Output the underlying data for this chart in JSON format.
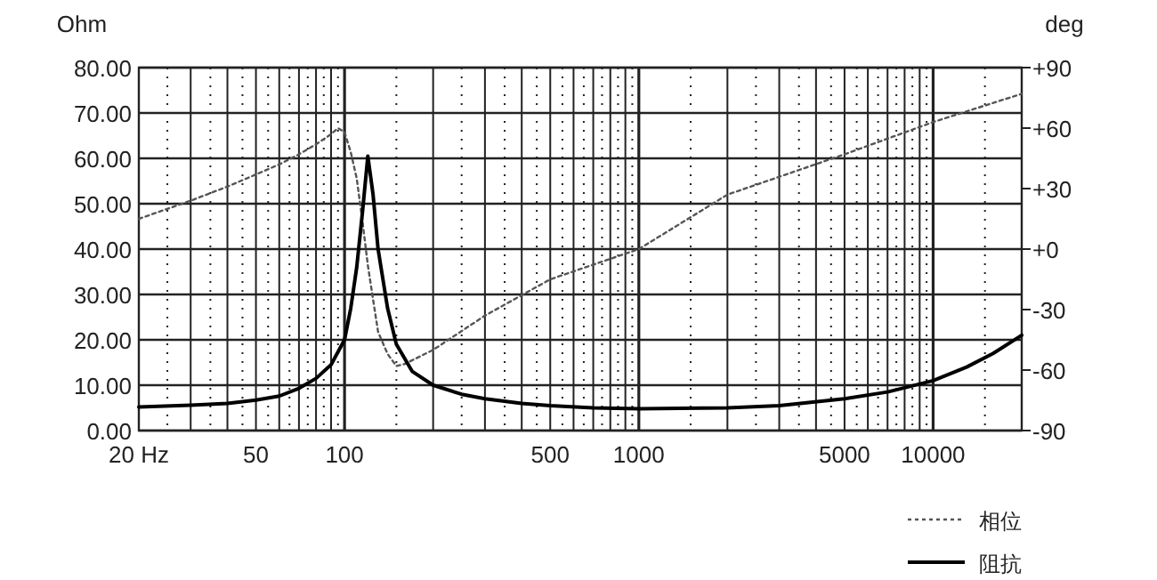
{
  "chart_data": {
    "type": "line",
    "ylabel": "Ohm",
    "y2label": "deg",
    "log": "x",
    "grid": true,
    "legend": "bottom right",
    "xlim": [
      20,
      20000
    ],
    "xticks": [
      {
        "value": 20,
        "label": "20 Hz"
      },
      50,
      100,
      500,
      1000,
      5000,
      10000
    ],
    "ylim": [
      0,
      80
    ],
    "yticks": [
      {
        "value": 0,
        "label": "0.00"
      },
      {
        "value": 10,
        "label": "10.00"
      },
      {
        "value": 20,
        "label": "20.00"
      },
      {
        "value": 30,
        "label": "30.00"
      },
      {
        "value": 40,
        "label": "40.00"
      },
      {
        "value": 50,
        "label": "50.00"
      },
      {
        "value": 60,
        "label": "60.00"
      },
      {
        "value": 70,
        "label": "70.00"
      },
      {
        "value": 80,
        "label": "80.00"
      }
    ],
    "y2lim": [
      -90,
      90
    ],
    "y2ticks": [
      {
        "value": -90,
        "label": "-90"
      },
      {
        "value": -60,
        "label": "-60"
      },
      {
        "value": -30,
        "label": "-30"
      },
      {
        "value": 0,
        "label": "+0"
      },
      {
        "value": 30,
        "label": "+30"
      },
      {
        "value": 60,
        "label": "+60"
      },
      {
        "value": 90,
        "label": "+90"
      }
    ],
    "series": [
      {
        "name": "相位",
        "color": "#555555",
        "line_style": "dotted",
        "axis": "y2",
        "x": [
          20,
          30,
          40,
          50,
          60,
          70,
          80,
          90,
          95,
          100,
          105,
          110,
          115,
          120,
          125,
          130,
          140,
          150,
          160,
          200,
          300,
          500,
          1000,
          2000,
          5000,
          10000,
          20000
        ],
        "values": [
          15,
          24,
          31,
          37,
          42,
          47,
          52,
          57,
          60,
          58,
          48,
          35,
          14,
          -8,
          -25,
          -41,
          -52,
          -58,
          -57,
          -50,
          -33,
          -15,
          0,
          27,
          47,
          63,
          77
        ]
      },
      {
        "name": "阻抗",
        "color": "#000000",
        "line_style": "solid",
        "x": [
          20,
          30,
          40,
          50,
          60,
          70,
          80,
          90,
          100,
          105,
          110,
          115,
          120,
          125,
          130,
          140,
          150,
          170,
          200,
          250,
          300,
          400,
          500,
          700,
          1000,
          2000,
          3000,
          5000,
          7000,
          10000,
          13000,
          16000,
          20000
        ],
        "values": [
          5.2,
          5.6,
          6.0,
          6.7,
          7.6,
          9.3,
          11.5,
          14.5,
          20,
          27,
          36,
          48,
          60.5,
          52,
          40,
          27,
          19,
          13,
          10,
          8,
          7,
          6,
          5.5,
          5,
          4.8,
          5,
          5.5,
          7,
          8.5,
          11,
          14,
          17,
          21
        ]
      }
    ]
  }
}
